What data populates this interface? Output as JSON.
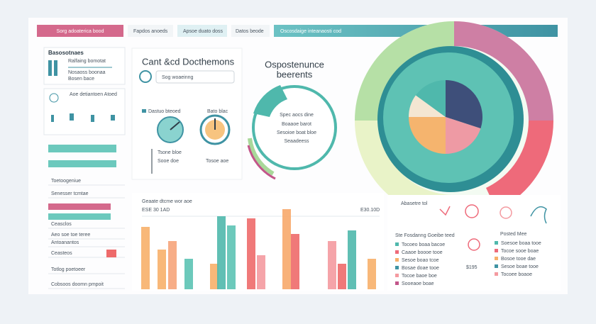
{
  "tabs": [
    "Sorg adoaterica bood",
    "Fapdos anoeds",
    "Apsoe duato doss",
    "Datos beode",
    "Oscosdaige inteanaosti cod"
  ],
  "left_panel": {
    "heading": "Basosotnaes",
    "items": [
      "Ralfaing bomotat",
      "Nosaoss boonaa",
      "Bosen bace"
    ],
    "heading2": "Aoe detiantoen Atoed",
    "rows": [
      "Toetoogeniue",
      "Senesser tcmtae",
      "Ceasclos",
      "Aeo soe toe teree",
      "Antoanantos",
      "Ceasteos",
      "Totlog poetoeer",
      "Cobsoos doomn pmpoit"
    ]
  },
  "search_panel": {
    "title": "Cant &cd Docthemons",
    "search": "Sog woaeinng",
    "gauge1": "Dastuo bteoed",
    "gauge2": "Bato blac",
    "gauge_notes": [
      "Tsone bloe",
      "Sooe doe",
      "Tosoe aoe"
    ]
  },
  "ring_panel": {
    "title": [
      "Ospostenunce",
      "beerents"
    ],
    "lines": [
      "Spec aocs dine",
      "Boaaoe barot",
      "Sesoioe boat bloe",
      "Seaadeess"
    ]
  },
  "pie": {
    "values": [
      30,
      20,
      25,
      10,
      15
    ],
    "colors": [
      "#3e4f7a",
      "#ee9aa4",
      "#f5b46e",
      "#f4e6d2",
      "#4fb8ac"
    ]
  },
  "bar_chart": {
    "title": "Geaate dtcme wor aoe",
    "note1": "ESE 30 1AD",
    "note2": "E30.10D",
    "values": [
      88,
      56,
      68,
      43,
      36,
      103,
      90,
      100,
      48,
      113,
      78,
      68,
      36,
      83,
      43
    ],
    "colors": [
      "#f7b06a",
      "#f7b06a",
      "#f6a47a",
      "#5cc3b4",
      "#f7b06a",
      "#4fb8ac",
      "#5cc3b4",
      "#ee6a6a",
      "#f49aa0",
      "#f7a86a",
      "#ee6a6a",
      "#f49aa0",
      "#ee6a6a",
      "#4fb8ac",
      "#f7b06a"
    ]
  },
  "legend_panel": {
    "title": "Abasetre tol",
    "subtitle": "Ste Fosdanng Goeibe teed",
    "items": [
      "Tocoeo boaa bacoe",
      "Caaoe boooe tooe",
      "Sesoe boao tcoe",
      "Bosae doae tooe",
      "Tocoe baoe boe",
      "Sooeaoe boae"
    ],
    "title2": "Posted Mee",
    "items2": [
      "Soesoe boaa tooe",
      "Tocoe sooe boae",
      "Bosoe tooe dae",
      "Sesoe boae tooe",
      "Tocoee boaoe"
    ],
    "note": "$195"
  }
}
